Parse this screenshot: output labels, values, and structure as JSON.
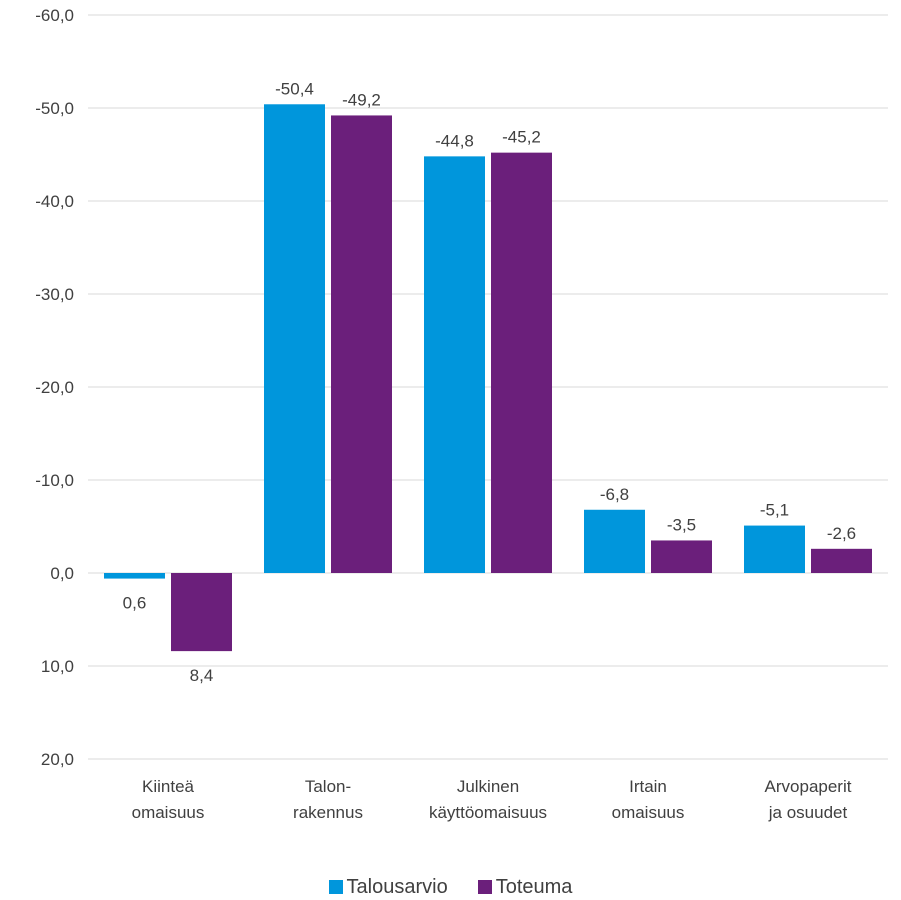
{
  "chart_data": {
    "type": "bar",
    "categories": [
      [
        "Kiinteä",
        "omaisuus"
      ],
      [
        "Talon-",
        "rakennus"
      ],
      [
        "Julkinen",
        "käyttöomaisuus"
      ],
      [
        "Irtain",
        "omaisuus"
      ],
      [
        "Arvopaperit",
        "ja osuudet"
      ]
    ],
    "series": [
      {
        "name": "Talousarvio",
        "color": "#0096DC",
        "values": [
          0.6,
          -50.4,
          -44.8,
          -6.8,
          -5.1
        ],
        "labels": [
          "0,6",
          "-50,4",
          "-44,8",
          "-6,8",
          "-5,1"
        ]
      },
      {
        "name": "Toteuma",
        "color": "#6B1F7B",
        "values": [
          8.4,
          -49.2,
          -45.2,
          -3.5,
          -2.6
        ],
        "labels": [
          "8,4",
          "-49,2",
          "-45,2",
          "-3,5",
          "-2,6"
        ]
      }
    ],
    "yaxis": {
      "ticks": [
        -60,
        -50,
        -40,
        -30,
        -20,
        -10,
        0,
        10,
        20
      ],
      "tick_labels": [
        "-60,0",
        "-50,0",
        "-40,0",
        "-30,0",
        "-20,0",
        "-10,0",
        "0,0",
        "10,0",
        "20,0"
      ],
      "range": [
        -60,
        20
      ],
      "inverted": true
    },
    "grid": true,
    "legend_position": "bottom"
  }
}
